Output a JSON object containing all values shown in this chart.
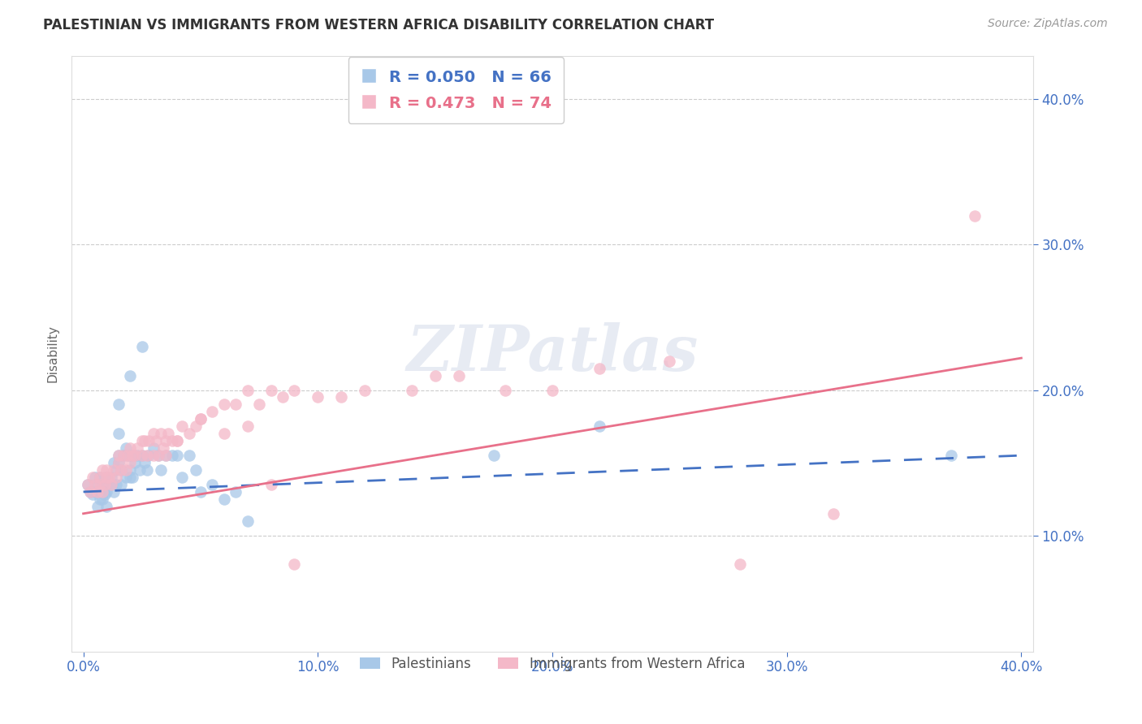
{
  "title": "PALESTINIAN VS IMMIGRANTS FROM WESTERN AFRICA DISABILITY CORRELATION CHART",
  "source": "Source: ZipAtlas.com",
  "ylabel": "Disability",
  "xlim": [
    0.0,
    0.4
  ],
  "ylim": [
    0.0,
    0.42
  ],
  "yticks": [
    0.1,
    0.2,
    0.3,
    0.4
  ],
  "xticks": [
    0.0,
    0.1,
    0.2,
    0.3,
    0.4
  ],
  "blue_R": 0.05,
  "blue_N": 66,
  "pink_R": 0.473,
  "pink_N": 74,
  "blue_color": "#a8c8e8",
  "pink_color": "#f4b8c8",
  "blue_line_color": "#4472c4",
  "pink_line_color": "#e8708a",
  "axis_color": "#4472c4",
  "legend_label_blue": "Palestinians",
  "legend_label_pink": "Immigrants from Western Africa",
  "watermark": "ZIPatlas",
  "blue_line_x0": 0.0,
  "blue_line_x1": 0.4,
  "blue_line_y0": 0.13,
  "blue_line_y1": 0.155,
  "pink_line_x0": 0.0,
  "pink_line_x1": 0.4,
  "pink_line_y0": 0.115,
  "pink_line_y1": 0.222,
  "blue_scatter_x": [
    0.002,
    0.003,
    0.004,
    0.005,
    0.005,
    0.006,
    0.006,
    0.007,
    0.007,
    0.007,
    0.008,
    0.008,
    0.008,
    0.009,
    0.009,
    0.01,
    0.01,
    0.01,
    0.01,
    0.01,
    0.012,
    0.012,
    0.013,
    0.013,
    0.014,
    0.014,
    0.015,
    0.015,
    0.015,
    0.016,
    0.016,
    0.017,
    0.018,
    0.018,
    0.019,
    0.02,
    0.02,
    0.02,
    0.021,
    0.022,
    0.023,
    0.024,
    0.025,
    0.026,
    0.027,
    0.028,
    0.03,
    0.032,
    0.033,
    0.035,
    0.038,
    0.04,
    0.042,
    0.045,
    0.048,
    0.05,
    0.055,
    0.06,
    0.065,
    0.07,
    0.015,
    0.02,
    0.025,
    0.175,
    0.22,
    0.37
  ],
  "blue_scatter_y": [
    0.135,
    0.13,
    0.128,
    0.14,
    0.13,
    0.12,
    0.135,
    0.125,
    0.13,
    0.14,
    0.135,
    0.13,
    0.125,
    0.14,
    0.128,
    0.135,
    0.13,
    0.14,
    0.12,
    0.135,
    0.14,
    0.135,
    0.15,
    0.13,
    0.145,
    0.135,
    0.17,
    0.15,
    0.155,
    0.145,
    0.135,
    0.155,
    0.14,
    0.16,
    0.155,
    0.145,
    0.14,
    0.155,
    0.14,
    0.15,
    0.155,
    0.145,
    0.155,
    0.15,
    0.145,
    0.155,
    0.16,
    0.155,
    0.145,
    0.155,
    0.155,
    0.155,
    0.14,
    0.155,
    0.145,
    0.13,
    0.135,
    0.125,
    0.13,
    0.11,
    0.19,
    0.21,
    0.23,
    0.155,
    0.175,
    0.155
  ],
  "pink_scatter_x": [
    0.002,
    0.003,
    0.004,
    0.005,
    0.006,
    0.007,
    0.007,
    0.008,
    0.008,
    0.009,
    0.01,
    0.01,
    0.011,
    0.012,
    0.013,
    0.014,
    0.015,
    0.016,
    0.017,
    0.018,
    0.019,
    0.02,
    0.021,
    0.022,
    0.023,
    0.025,
    0.026,
    0.027,
    0.028,
    0.03,
    0.031,
    0.032,
    0.033,
    0.034,
    0.035,
    0.036,
    0.038,
    0.04,
    0.042,
    0.045,
    0.048,
    0.05,
    0.055,
    0.06,
    0.065,
    0.07,
    0.075,
    0.08,
    0.085,
    0.09,
    0.1,
    0.11,
    0.12,
    0.14,
    0.15,
    0.16,
    0.18,
    0.2,
    0.22,
    0.25,
    0.015,
    0.02,
    0.025,
    0.03,
    0.035,
    0.04,
    0.05,
    0.06,
    0.07,
    0.08,
    0.09,
    0.38,
    0.28,
    0.32
  ],
  "pink_scatter_y": [
    0.135,
    0.13,
    0.14,
    0.135,
    0.13,
    0.14,
    0.135,
    0.13,
    0.145,
    0.135,
    0.14,
    0.145,
    0.14,
    0.135,
    0.145,
    0.14,
    0.15,
    0.145,
    0.155,
    0.145,
    0.155,
    0.15,
    0.155,
    0.155,
    0.16,
    0.155,
    0.165,
    0.155,
    0.165,
    0.155,
    0.165,
    0.155,
    0.17,
    0.16,
    0.165,
    0.17,
    0.165,
    0.165,
    0.175,
    0.17,
    0.175,
    0.18,
    0.185,
    0.19,
    0.19,
    0.2,
    0.19,
    0.2,
    0.195,
    0.2,
    0.195,
    0.195,
    0.2,
    0.2,
    0.21,
    0.21,
    0.2,
    0.2,
    0.215,
    0.22,
    0.155,
    0.16,
    0.165,
    0.17,
    0.155,
    0.165,
    0.18,
    0.17,
    0.175,
    0.135,
    0.08,
    0.32,
    0.08,
    0.115
  ]
}
